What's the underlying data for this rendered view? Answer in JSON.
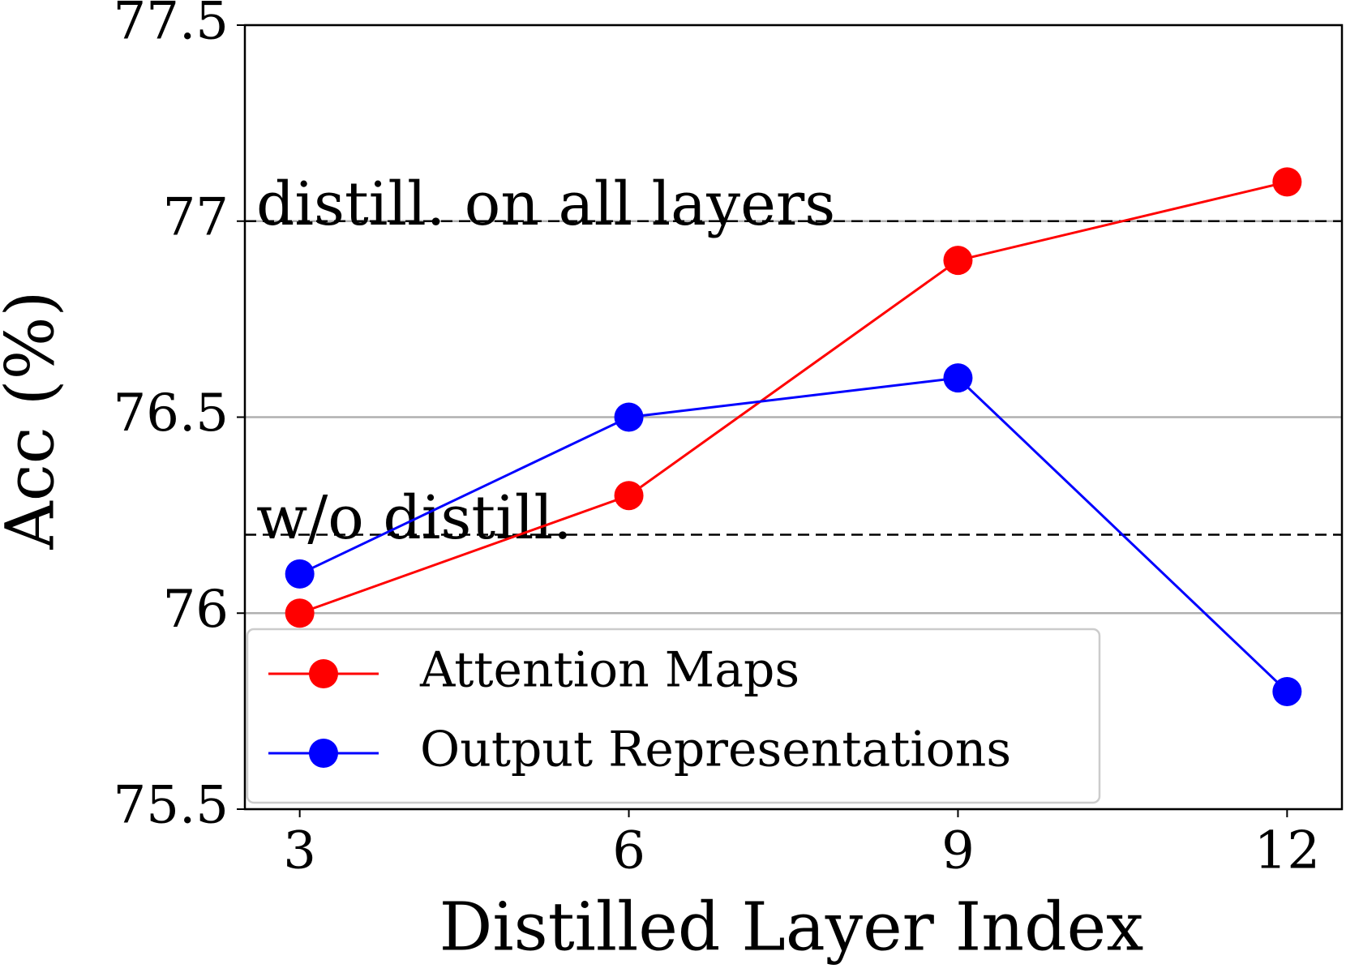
{
  "chart_data": {
    "type": "line",
    "x_label": "Distilled Layer Index",
    "y_label": "Acc (%)",
    "x": [
      3,
      6,
      9,
      12
    ],
    "series": [
      {
        "name": "Attention Maps",
        "color": "#ff0000",
        "values": [
          76.0,
          76.3,
          76.9,
          77.1
        ]
      },
      {
        "name": "Output Representations",
        "color": "#0000ff",
        "values": [
          76.1,
          76.5,
          76.6,
          75.8
        ]
      }
    ],
    "xlim": [
      2.5,
      12.5
    ],
    "xticks": [
      3,
      6,
      9,
      12
    ],
    "ylim": [
      75.5,
      77.5
    ],
    "yticks": [
      75.5,
      76,
      76.5,
      77,
      77.5
    ],
    "grid": true,
    "legend": "lower left",
    "reference_lines": [
      {
        "value": 77,
        "label": "distill. on all layers"
      },
      {
        "value": 76.2,
        "label": "w/o distill."
      }
    ]
  }
}
